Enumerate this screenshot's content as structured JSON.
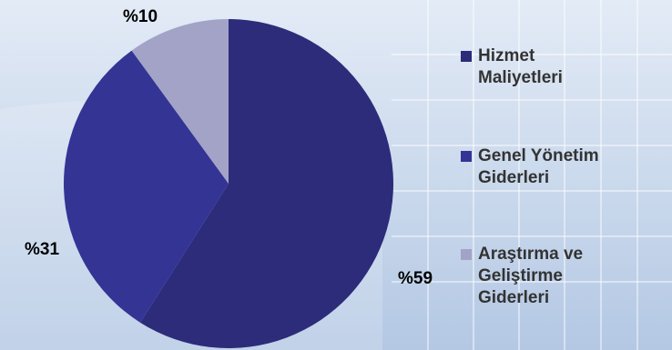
{
  "colors": {
    "hizmet": "#2c2c7a",
    "genel": "#343495",
    "arastirma": "#a2a3c6"
  },
  "chart_data": {
    "type": "pie",
    "slices": [
      {
        "label": "Hizmet Maliyetleri",
        "value": 59,
        "display": "%59",
        "color": "#2c2c7a"
      },
      {
        "label": "Genel Yönetim Giderleri",
        "value": 31,
        "display": "%31",
        "color": "#343495"
      },
      {
        "label": "Araştırma ve Geliştirme Giderleri",
        "value": 10,
        "display": "%10",
        "color": "#a2a3c6"
      }
    ],
    "legend_position": "right"
  },
  "legend": {
    "items": [
      {
        "line1": "Hizmet",
        "line2": "Maliyetleri",
        "line3": ""
      },
      {
        "line1": "Genel Yönetim",
        "line2": "Giderleri",
        "line3": ""
      },
      {
        "line1": "Araştırma ve",
        "line2": "Geliştirme",
        "line3": "Giderleri"
      }
    ]
  }
}
